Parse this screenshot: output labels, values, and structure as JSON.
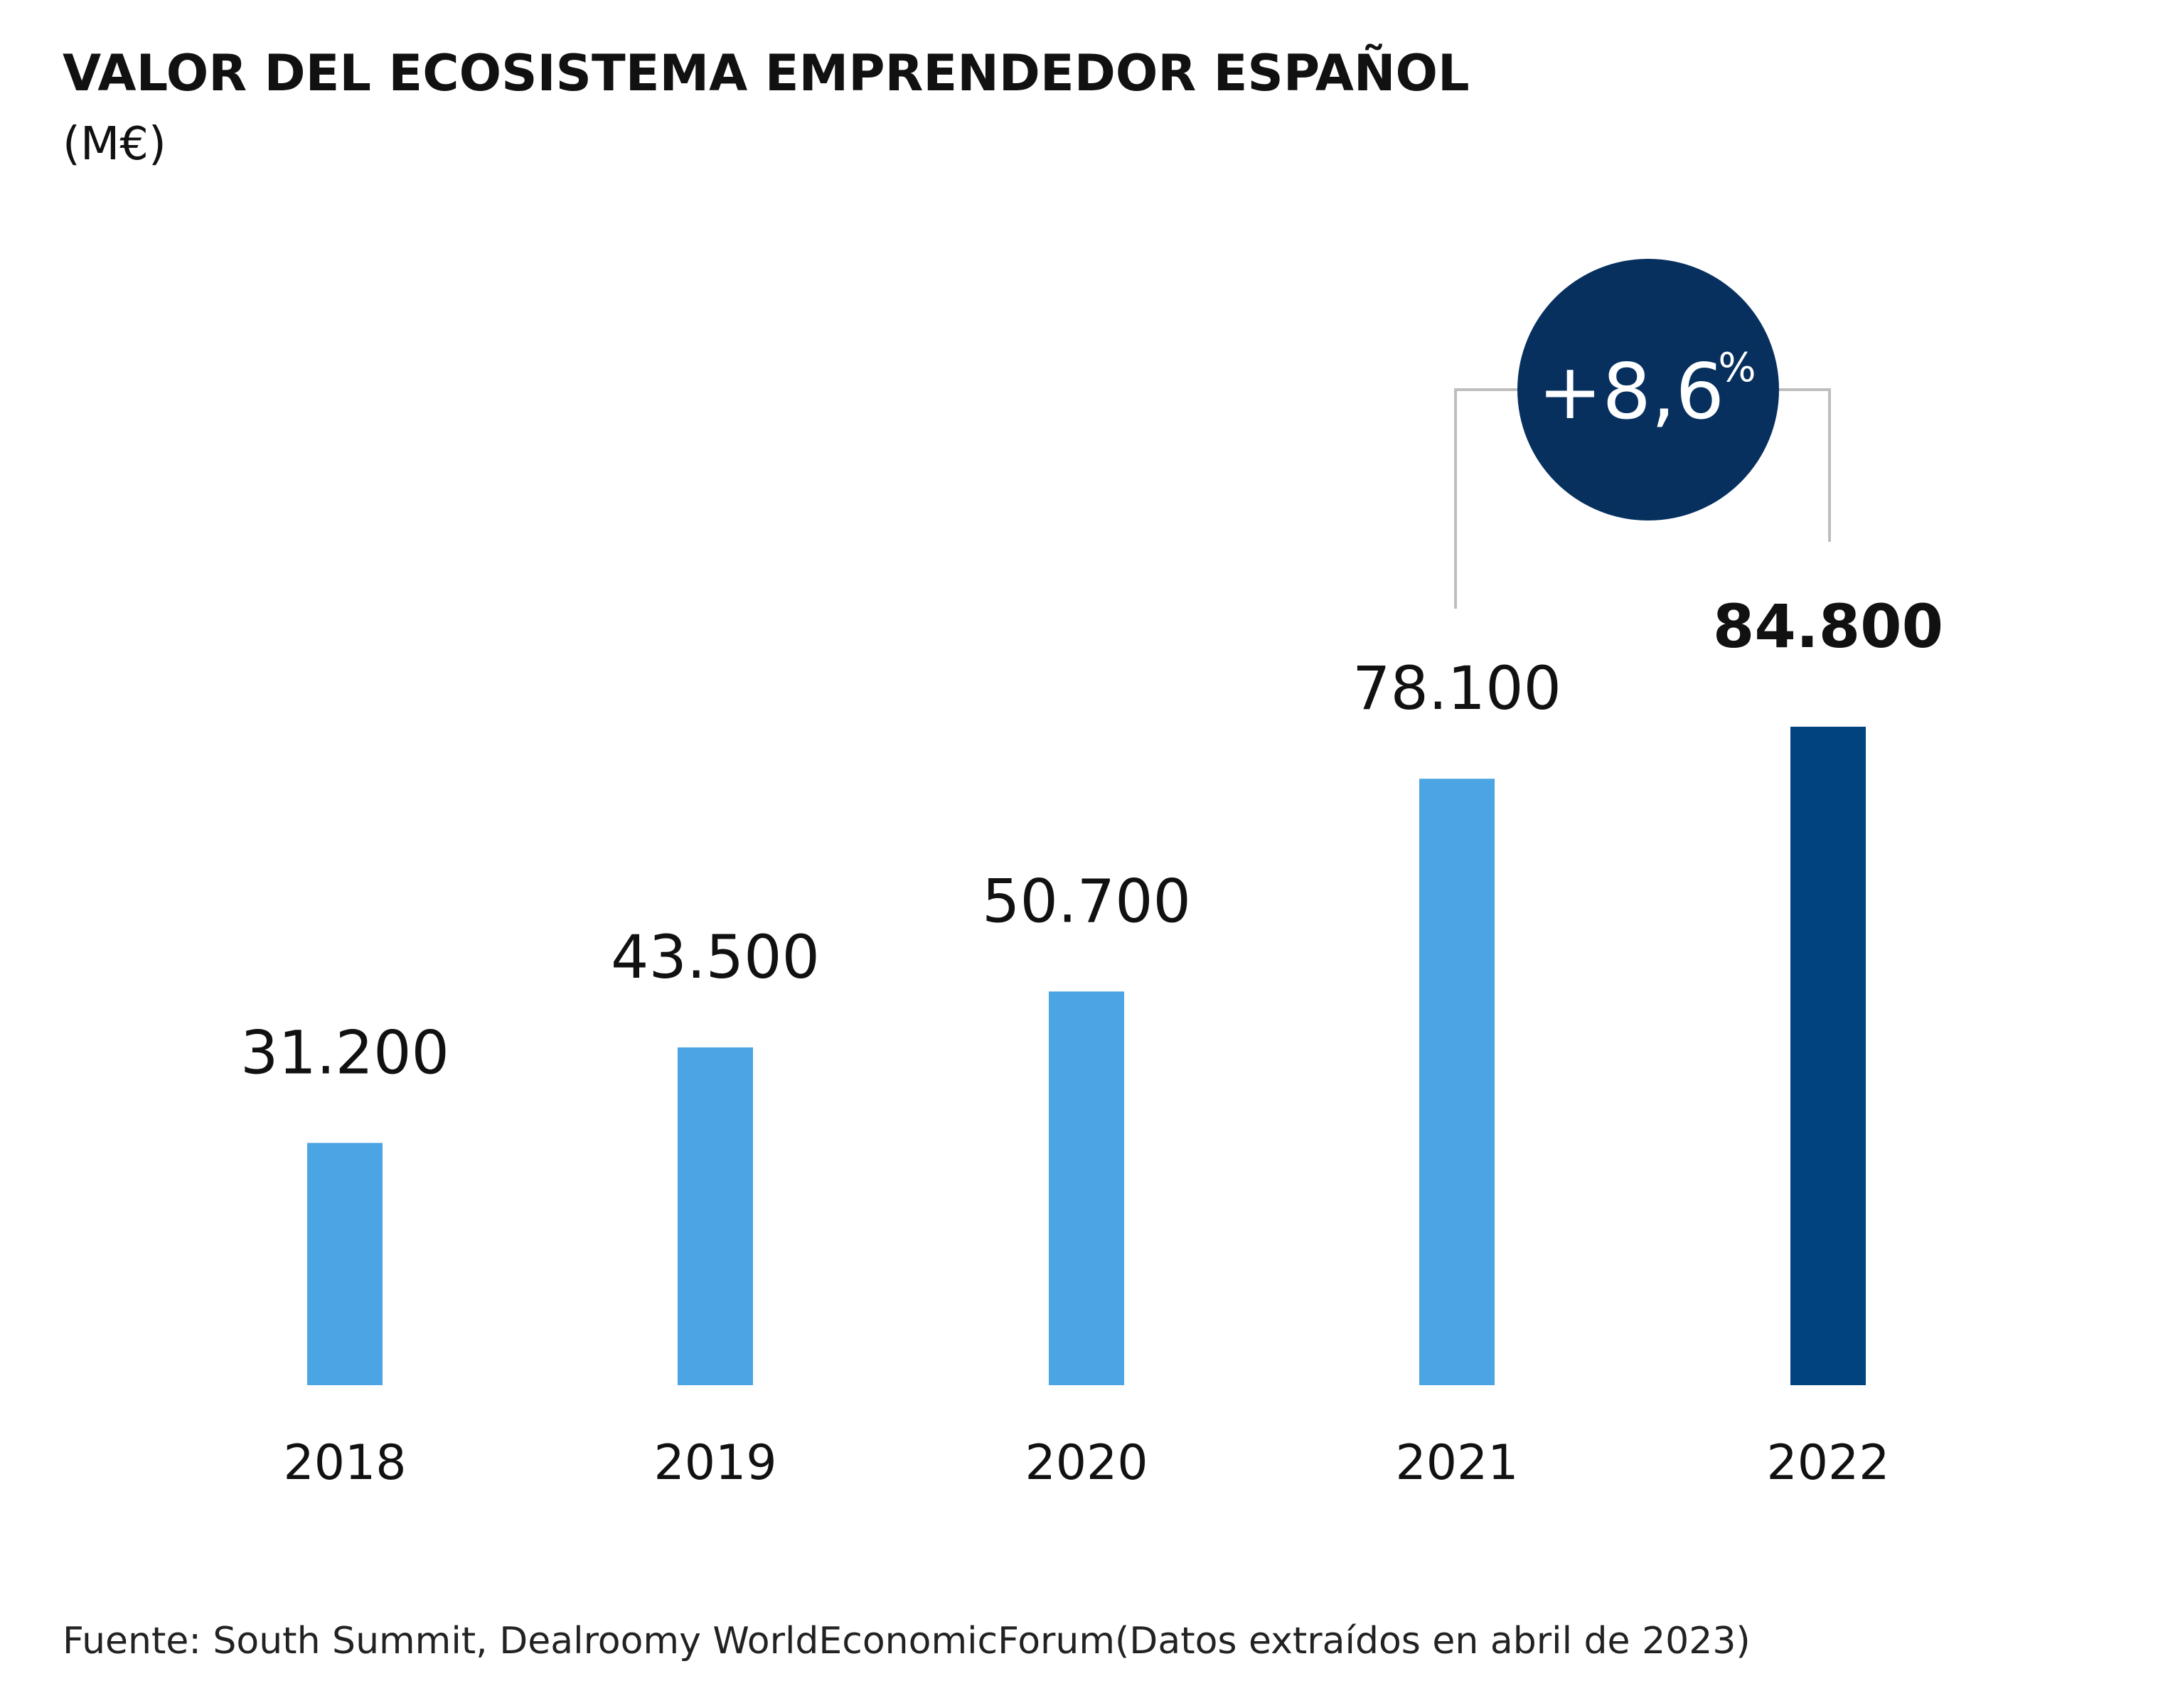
{
  "chart_data": {
    "type": "bar",
    "title": "VALOR DEL ECOSISTEMA EMPRENDEDOR ESPAÑOL",
    "subtitle": "(M€)",
    "xlabel": "",
    "ylabel": "",
    "categories": [
      "2018",
      "2019",
      "2020",
      "2021",
      "2022"
    ],
    "values": [
      31200,
      43500,
      50700,
      78100,
      84800
    ],
    "value_labels": [
      "31.200",
      "43.500",
      "50.700",
      "78.100",
      "84.800"
    ],
    "ylim": [
      0,
      84800
    ],
    "grid": false,
    "highlight_index": 4,
    "annotation": {
      "text": "+8,6",
      "suffix": "%",
      "from_category": "2021",
      "to_category": "2022"
    },
    "colors": {
      "bar": "#4BA4E3",
      "bar_highlight": "#00437E",
      "badge": "#07305F",
      "bracket": "#BEBEBE",
      "text": "#111111"
    }
  },
  "source": "Fuente: South Summit, Dealroomy WorldEconomicForum(Datos extraídos en abril de 2023)"
}
